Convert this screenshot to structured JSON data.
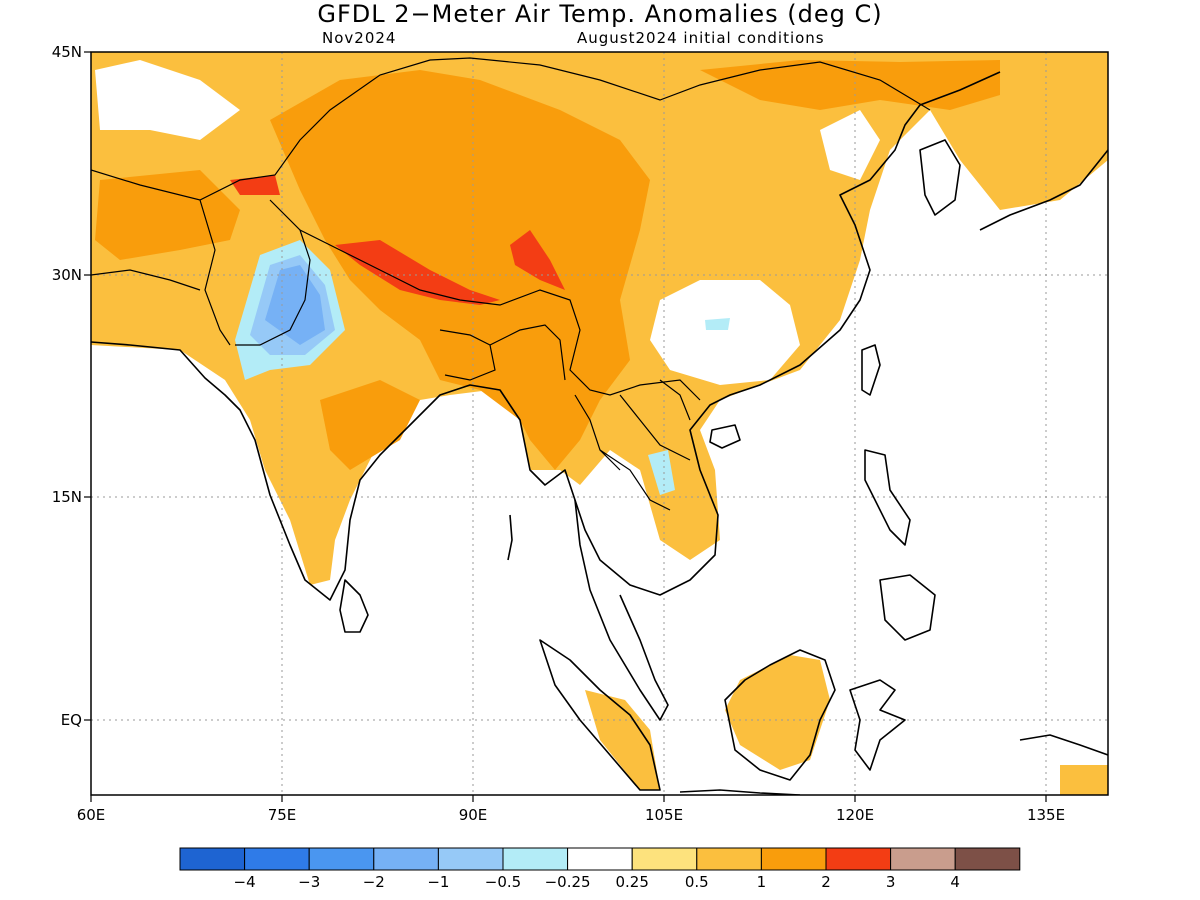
{
  "title": "GFDL 2−Meter Air Temp. Anomalies (deg C)",
  "month": "Nov2024",
  "init": "August2024 initial conditions",
  "axes": {
    "lat_labels": [
      "45N",
      "30N",
      "15N",
      "EQ"
    ],
    "lon_labels": [
      "60E",
      "75E",
      "90E",
      "105E",
      "120E",
      "135E"
    ],
    "lat_range": [
      -5,
      45
    ],
    "lon_range": [
      60,
      140
    ]
  },
  "colorbar": {
    "colors": [
      "#1e64d2",
      "#2f7be8",
      "#4a96f0",
      "#76b1f5",
      "#96c9f7",
      "#b3ecf7",
      "#ffffff",
      "#fde27d",
      "#fbbf3e",
      "#f99d0c",
      "#f33d14",
      "#c99d8d",
      "#7d5047"
    ],
    "labels": [
      "−4",
      "−3",
      "−2",
      "−1",
      "−0.5",
      "−0.25",
      "0.25",
      "0.5",
      "1",
      "2",
      "3",
      "4"
    ]
  }
}
